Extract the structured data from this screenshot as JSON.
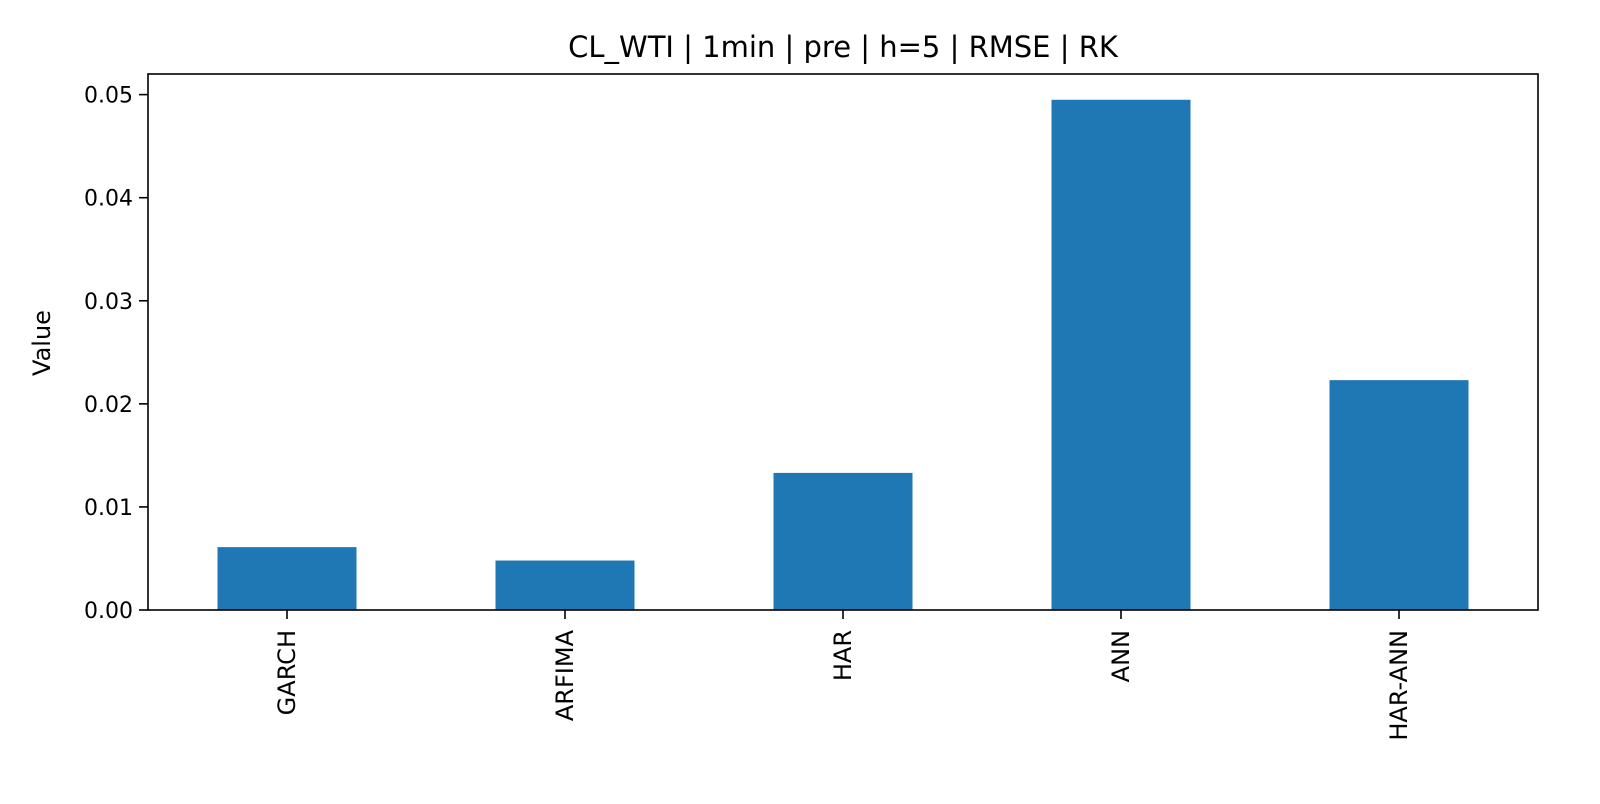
{
  "chart_data": {
    "type": "bar",
    "title": "CL_WTI | 1min | pre | h=5 | RMSE | RK",
    "xlabel": "",
    "ylabel": "Value",
    "categories": [
      "GARCH",
      "ARFIMA",
      "HAR",
      "ANN",
      "HAR-ANN"
    ],
    "values": [
      0.0061,
      0.0048,
      0.0133,
      0.0495,
      0.0223
    ],
    "ylim": [
      0,
      0.052
    ],
    "yticks": [
      0.0,
      0.01,
      0.02,
      0.03,
      0.04,
      0.05
    ],
    "ytick_labels": [
      "0.00",
      "0.01",
      "0.02",
      "0.03",
      "0.04",
      "0.05"
    ],
    "grid": false,
    "legend": "none",
    "bar_color": "#1f77b4"
  }
}
